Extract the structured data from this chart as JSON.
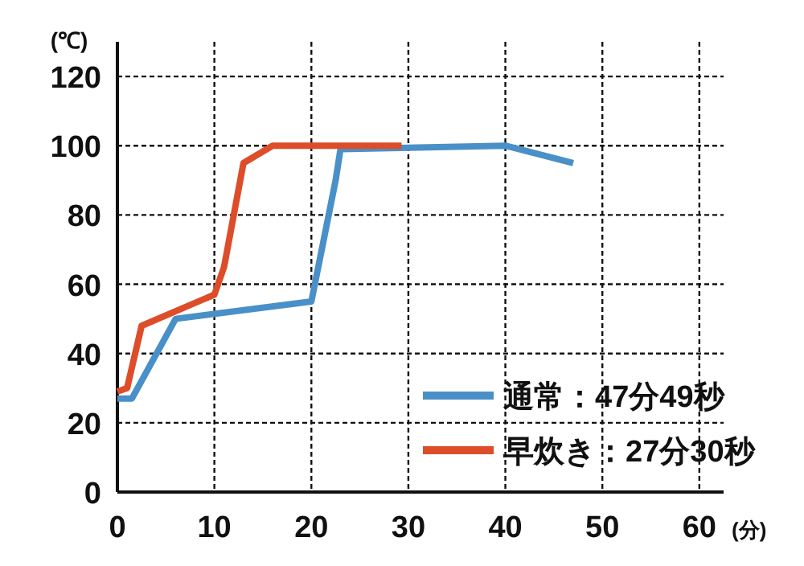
{
  "chart_data": {
    "type": "line",
    "ylabel": "(℃)",
    "xlabel": "(分)",
    "xlim": [
      0,
      62.5
    ],
    "ylim": [
      0,
      130
    ],
    "xticks": [
      0,
      10,
      20,
      30,
      40,
      50,
      60
    ],
    "yticks": [
      0,
      20,
      40,
      60,
      80,
      100,
      120
    ],
    "grid": true,
    "legend": "bottom right",
    "line_style": "solid",
    "marker": "none",
    "series": [
      {
        "name": "通常：47分49秒",
        "color": "#4a90c8",
        "x": [
          0,
          1.5,
          6,
          20,
          22.5,
          23,
          40,
          47
        ],
        "values": [
          27,
          27,
          50,
          55,
          90,
          99,
          100,
          95
        ]
      },
      {
        "name": "早炊き：27分30秒",
        "color": "#dd4d2a",
        "x": [
          0,
          1,
          2.5,
          10,
          11,
          13,
          16,
          29.3
        ],
        "values": [
          29,
          30,
          48,
          57,
          65,
          95,
          100,
          100
        ]
      }
    ]
  }
}
